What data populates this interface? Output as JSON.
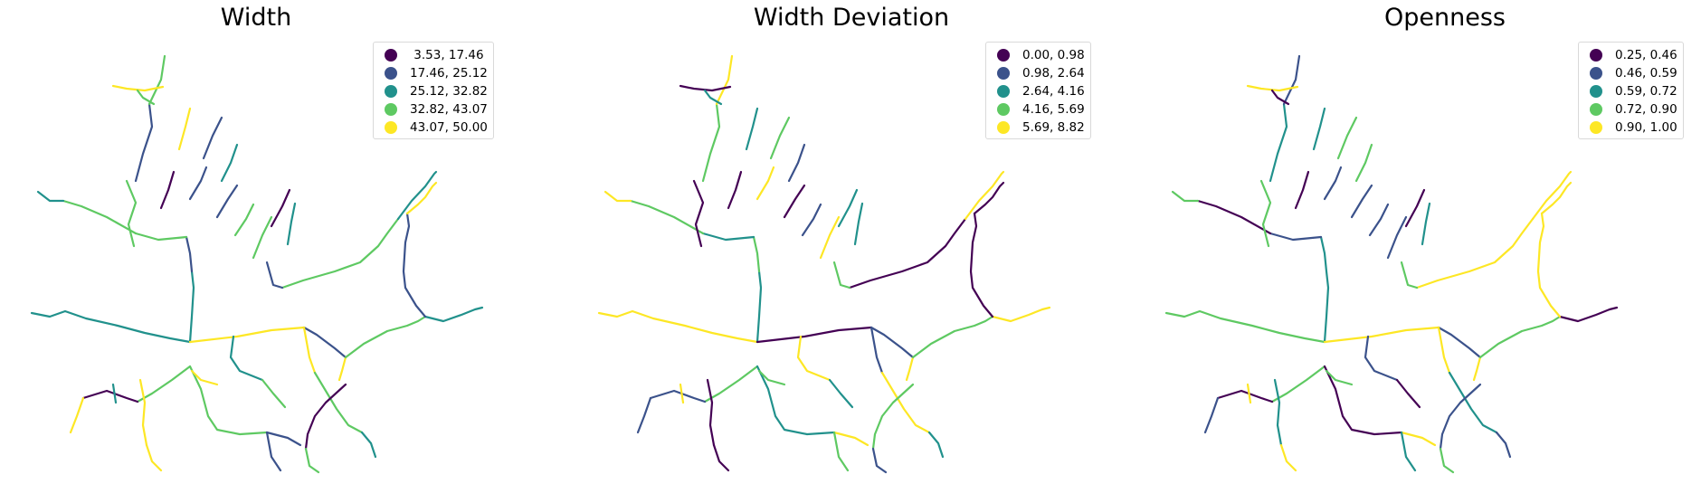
{
  "palette": [
    "#440154",
    "#3b528b",
    "#21918c",
    "#5ec962",
    "#fde725"
  ],
  "panels": [
    {
      "title": "Width",
      "legend": [
        {
          "label": " 3.53, 17.46",
          "color": "#440154"
        },
        {
          "label": "17.46, 25.12",
          "color": "#3b528b"
        },
        {
          "label": "25.12, 32.82",
          "color": "#21918c"
        },
        {
          "label": "32.82, 43.07",
          "color": "#5ec962"
        },
        {
          "label": "43.07, 50.00",
          "color": "#fde725"
        }
      ]
    },
    {
      "title": "Width Deviation",
      "legend": [
        {
          "label": "0.00, 0.98",
          "color": "#440154"
        },
        {
          "label": "0.98, 2.64",
          "color": "#3b528b"
        },
        {
          "label": "2.64, 4.16",
          "color": "#21918c"
        },
        {
          "label": "4.16, 5.69",
          "color": "#5ec962"
        },
        {
          "label": "5.69, 8.82",
          "color": "#fde725"
        }
      ]
    },
    {
      "title": "Openness",
      "legend": [
        {
          "label": "0.25, 0.46",
          "color": "#440154"
        },
        {
          "label": "0.46, 0.59",
          "color": "#3b528b"
        },
        {
          "label": "0.59, 0.72",
          "color": "#21918c"
        },
        {
          "label": "0.72, 0.90",
          "color": "#5ec962"
        },
        {
          "label": "0.90, 1.00",
          "color": "#fde725"
        }
      ]
    }
  ],
  "segment_classes": [
    [
      2,
      2,
      4,
      1,
      4,
      3,
      2,
      1,
      4,
      3,
      2,
      1,
      3,
      3,
      2,
      3,
      0,
      4,
      3,
      1,
      1,
      4,
      2,
      3,
      4,
      3,
      2,
      0,
      3,
      4,
      4,
      2,
      3,
      1,
      3,
      4,
      3,
      4,
      1,
      2,
      0,
      1,
      1,
      3,
      3,
      0,
      2,
      1
    ],
    [
      4,
      2,
      0,
      1,
      4,
      3,
      4,
      0,
      0,
      0,
      4,
      3,
      2,
      3,
      4,
      3,
      1,
      1,
      2,
      4,
      3,
      3,
      4,
      2,
      1,
      4,
      2,
      3,
      1,
      0,
      0,
      4,
      0,
      3,
      4,
      0,
      2,
      2,
      3,
      1,
      0,
      4,
      0,
      1,
      4,
      2,
      2,
      3
    ],
    [
      3,
      2,
      4,
      1,
      4,
      3,
      0,
      4,
      4,
      4,
      4,
      2,
      1,
      0,
      3,
      3,
      0,
      1,
      0,
      4,
      2,
      3,
      1,
      0,
      4,
      2,
      1,
      1,
      3,
      2,
      4,
      4,
      3,
      2,
      1,
      4,
      0,
      2,
      3,
      3,
      0,
      1,
      1,
      1,
      1,
      0,
      2,
      3
    ]
  ]
}
